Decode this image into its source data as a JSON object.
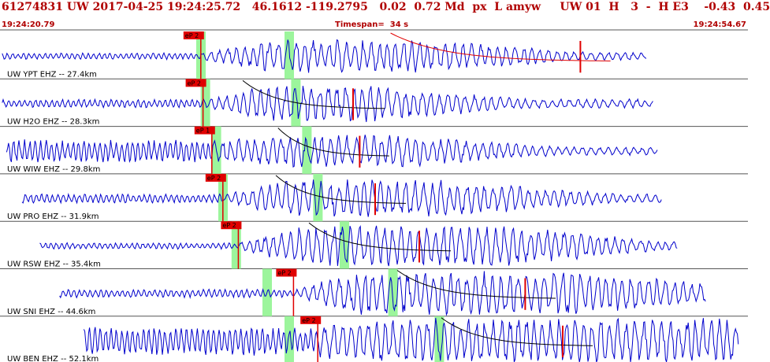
{
  "header": {
    "event_line": "61274831 UW 2017-04-25 19:24:25.72   46.1612 -119.2795   0.02  0.72 Md  px  L amyw     UW 01  H   3  -  H E3    -0.43  0.45",
    "start_time": "19:24:20.79",
    "timespan_label": "Timespan=",
    "timespan_value": "34 s",
    "end_time": "19:24:54.67"
  },
  "colors": {
    "header_text": "#b00000",
    "trace": "#0000cc",
    "pick": "#e00000",
    "window": "#9cf59c",
    "coda": "#000000",
    "separator": "#555555"
  },
  "traces": [
    {
      "label": "UW YPT EHZ -- 27.4km",
      "pick": "eP 2",
      "pick_time_s": 9.1,
      "win1_s": 9.0,
      "win2_s": 13.0,
      "coda_start_s": 17.7,
      "coda_end_s": 26.3,
      "amp": 3.0,
      "burst_amp": 16,
      "start_s": 0.1,
      "end_s": 29.3,
      "decay_start_s": 19.0,
      "noise_amp": 3.2
    },
    {
      "label": "UW H2O EHZ -- 28.3km",
      "pick": "eP 2",
      "pick_time_s": 9.2,
      "win1_s": 9.2,
      "win2_s": 13.3,
      "coda_start_s": 11.0,
      "coda_end_s": 16.0,
      "amp": 4.0,
      "burst_amp": 18,
      "start_s": 0.1,
      "end_s": 29.6,
      "decay_start_s": 16.5,
      "noise_amp": 4.0
    },
    {
      "label": "UW WIW EHZ -- 29.8km",
      "pick": "eP 1",
      "pick_time_s": 9.6,
      "win1_s": 9.7,
      "win2_s": 13.8,
      "coda_start_s": 12.6,
      "coda_end_s": 16.3,
      "amp": 10,
      "burst_amp": 16,
      "start_s": 0.3,
      "end_s": 29.8,
      "decay_start_s": 18.0,
      "noise_amp": 11
    },
    {
      "label": "UW PRO EHZ -- 31.9km",
      "pick": "eP 2",
      "pick_time_s": 10.1,
      "win1_s": 10.0,
      "win2_s": 14.3,
      "coda_start_s": 12.5,
      "coda_end_s": 17.0,
      "amp": 4.0,
      "burst_amp": 18,
      "start_s": 1.0,
      "end_s": 30.0,
      "decay_start_s": 20.5,
      "noise_amp": 4.5
    },
    {
      "label": "UW RSW EHZ -- 35.4km",
      "pick": "eP 2",
      "pick_time_s": 10.8,
      "win1_s": 10.6,
      "win2_s": 15.5,
      "coda_start_s": 14.0,
      "coda_end_s": 19.0,
      "amp": 3.5,
      "burst_amp": 20,
      "start_s": 1.8,
      "end_s": 30.7,
      "decay_start_s": 22.5,
      "noise_amp": 3.0
    },
    {
      "label": "UW SNI EHZ -- 44.6km",
      "pick": "eP 2",
      "pick_time_s": 13.3,
      "win1_s": 12.0,
      "win2_s": 17.7,
      "coda_start_s": 18.0,
      "coda_end_s": 23.8,
      "amp": 3.5,
      "burst_amp": 22,
      "start_s": 2.7,
      "end_s": 32.0,
      "decay_start_s": 26.5,
      "noise_amp": 4.0
    },
    {
      "label": "UW BEN EHZ -- 52.1km",
      "pick": "eP 2",
      "pick_time_s": 14.4,
      "win1_s": 13.0,
      "win2_s": 19.8,
      "coda_start_s": 20.0,
      "coda_end_s": 25.5,
      "amp": 16,
      "burst_amp": 22,
      "start_s": 3.8,
      "end_s": 33.5,
      "decay_start_s": 35.0,
      "noise_amp": 14
    }
  ]
}
